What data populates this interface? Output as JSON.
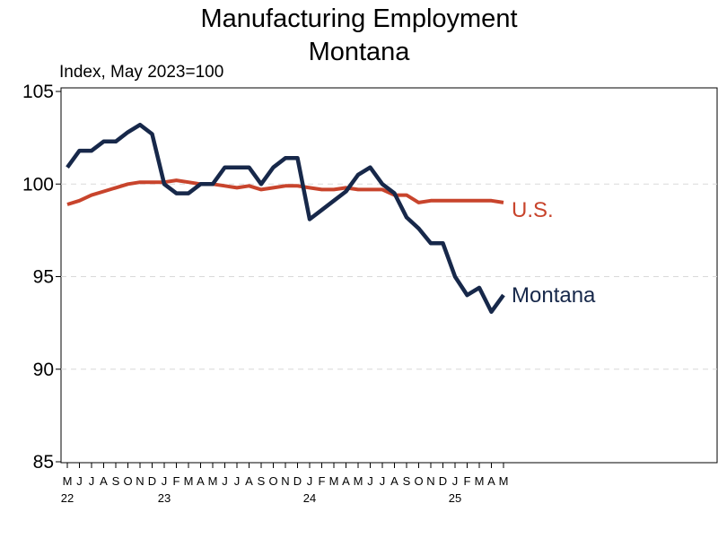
{
  "chart_data": {
    "type": "line",
    "title": "Manufacturing Employment",
    "subtitle": "Montana",
    "ylabel": "Index, May 2023=100",
    "xlabel": "",
    "ylim": [
      85,
      105
    ],
    "yticks": [
      85,
      90,
      95,
      100,
      105
    ],
    "grid": "horizontal-dashed",
    "month_labels": [
      "M",
      "J",
      "J",
      "A",
      "S",
      "O",
      "N",
      "D",
      "J",
      "F",
      "M",
      "A",
      "M",
      "J",
      "J",
      "A",
      "S",
      "O",
      "N",
      "D",
      "J",
      "F",
      "M",
      "A",
      "M",
      "J",
      "J",
      "A",
      "S",
      "O",
      "N",
      "D",
      "J",
      "F",
      "M",
      "A",
      "M"
    ],
    "year_labels": [
      {
        "index": 0,
        "label": "22"
      },
      {
        "index": 8,
        "label": "23"
      },
      {
        "index": 20,
        "label": "24"
      },
      {
        "index": 32,
        "label": "25"
      }
    ],
    "series": [
      {
        "name": "U.S.",
        "color": "#c8442c",
        "values": [
          98.9,
          99.1,
          99.4,
          99.6,
          99.8,
          100.0,
          100.1,
          100.1,
          100.1,
          100.2,
          100.1,
          100.0,
          100.0,
          99.9,
          99.8,
          99.9,
          99.7,
          99.8,
          99.9,
          99.9,
          99.8,
          99.7,
          99.7,
          99.8,
          99.7,
          99.7,
          99.7,
          99.4,
          99.4,
          99.0,
          99.1,
          99.1,
          99.1,
          99.1,
          99.1,
          99.1,
          99.0
        ]
      },
      {
        "name": "Montana",
        "color": "#17284a",
        "values": [
          100.9,
          101.8,
          101.8,
          102.3,
          102.3,
          102.8,
          103.2,
          102.7,
          100.0,
          99.5,
          99.5,
          100.0,
          100.0,
          100.9,
          100.9,
          100.9,
          100.0,
          100.9,
          101.4,
          101.4,
          98.1,
          98.6,
          99.1,
          99.6,
          100.5,
          100.9,
          100.0,
          99.5,
          98.2,
          97.6,
          96.8,
          96.8,
          95.0,
          94.0,
          94.4,
          93.1,
          94.0
        ]
      }
    ]
  }
}
